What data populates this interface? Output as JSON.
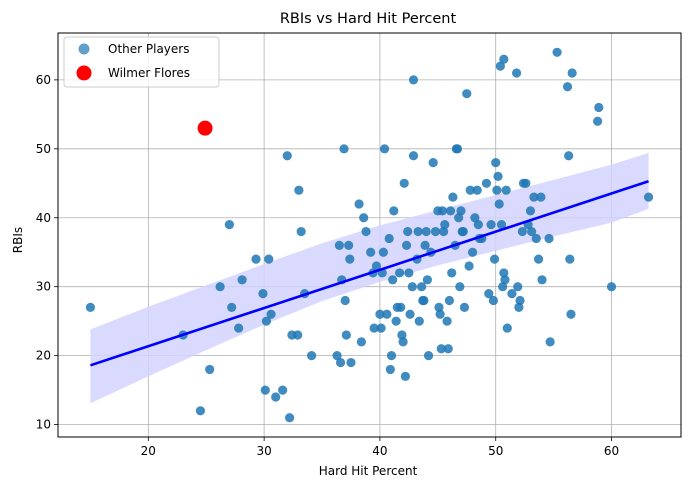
{
  "chart_data": {
    "type": "scatter",
    "title": "RBIs vs Hard Hit Percent",
    "xlabel": "Hard Hit Percent",
    "ylabel": "RBIs",
    "xlim": [
      12.2,
      66.0
    ],
    "ylim": [
      8.2,
      66.8
    ],
    "xticks": [
      20,
      30,
      40,
      50,
      60
    ],
    "yticks": [
      10,
      20,
      30,
      40,
      50,
      60
    ],
    "grid": true,
    "legend_position": "top-left",
    "series": [
      {
        "name": "Other Players",
        "color": "#1f77b4",
        "points": [
          [
            15.0,
            27
          ],
          [
            23.0,
            23
          ],
          [
            24.5,
            12
          ],
          [
            25.3,
            18
          ],
          [
            26.2,
            30
          ],
          [
            27.0,
            39
          ],
          [
            27.2,
            27
          ],
          [
            27.8,
            24
          ],
          [
            28.1,
            31
          ],
          [
            29.3,
            34
          ],
          [
            29.9,
            29
          ],
          [
            30.1,
            15
          ],
          [
            30.2,
            25
          ],
          [
            30.4,
            34
          ],
          [
            30.6,
            26
          ],
          [
            31.0,
            14
          ],
          [
            31.6,
            15
          ],
          [
            32.0,
            49
          ],
          [
            32.2,
            11
          ],
          [
            32.4,
            23
          ],
          [
            32.9,
            23
          ],
          [
            33.0,
            44
          ],
          [
            33.2,
            38
          ],
          [
            33.5,
            29
          ],
          [
            34.1,
            20
          ],
          [
            36.3,
            20
          ],
          [
            36.5,
            36
          ],
          [
            36.6,
            19
          ],
          [
            36.7,
            31
          ],
          [
            36.9,
            50
          ],
          [
            37.0,
            28
          ],
          [
            37.1,
            23
          ],
          [
            37.3,
            36
          ],
          [
            37.4,
            34
          ],
          [
            37.5,
            19
          ],
          [
            38.2,
            42
          ],
          [
            38.4,
            22
          ],
          [
            38.6,
            40
          ],
          [
            38.8,
            38
          ],
          [
            39.2,
            35
          ],
          [
            39.4,
            32
          ],
          [
            39.5,
            24
          ],
          [
            39.7,
            33
          ],
          [
            40.0,
            26
          ],
          [
            40.1,
            24
          ],
          [
            40.2,
            32
          ],
          [
            40.3,
            35
          ],
          [
            40.4,
            50
          ],
          [
            40.6,
            26
          ],
          [
            40.8,
            37
          ],
          [
            40.9,
            18
          ],
          [
            41.0,
            20
          ],
          [
            41.1,
            31
          ],
          [
            41.2,
            41
          ],
          [
            41.4,
            25
          ],
          [
            41.5,
            27
          ],
          [
            41.7,
            32
          ],
          [
            41.8,
            27
          ],
          [
            41.9,
            23
          ],
          [
            42.0,
            22
          ],
          [
            42.1,
            45
          ],
          [
            42.2,
            17
          ],
          [
            42.3,
            36
          ],
          [
            42.4,
            38
          ],
          [
            42.5,
            32
          ],
          [
            42.6,
            26
          ],
          [
            42.8,
            30
          ],
          [
            42.9,
            60
          ],
          [
            42.9,
            49
          ],
          [
            43.2,
            34
          ],
          [
            43.3,
            38
          ],
          [
            43.4,
            25
          ],
          [
            43.6,
            30
          ],
          [
            43.7,
            28
          ],
          [
            43.8,
            28
          ],
          [
            43.9,
            36
          ],
          [
            44.0,
            38
          ],
          [
            44.1,
            31
          ],
          [
            44.2,
            20
          ],
          [
            44.4,
            35
          ],
          [
            44.6,
            48
          ],
          [
            44.8,
            38
          ],
          [
            45.0,
            41
          ],
          [
            45.1,
            27
          ],
          [
            45.2,
            26
          ],
          [
            45.3,
            21
          ],
          [
            45.4,
            41
          ],
          [
            45.5,
            38
          ],
          [
            45.6,
            39
          ],
          [
            45.8,
            25
          ],
          [
            45.9,
            21
          ],
          [
            46.0,
            28
          ],
          [
            46.1,
            41
          ],
          [
            46.2,
            32
          ],
          [
            46.3,
            43
          ],
          [
            46.5,
            36
          ],
          [
            46.6,
            50
          ],
          [
            46.7,
            50
          ],
          [
            46.8,
            40
          ],
          [
            46.9,
            30
          ],
          [
            47.0,
            41
          ],
          [
            47.1,
            38
          ],
          [
            47.2,
            38
          ],
          [
            47.3,
            27
          ],
          [
            47.5,
            58
          ],
          [
            47.7,
            33
          ],
          [
            47.8,
            44
          ],
          [
            48.0,
            35
          ],
          [
            48.2,
            40
          ],
          [
            48.4,
            44
          ],
          [
            48.5,
            39
          ],
          [
            48.6,
            37
          ],
          [
            48.8,
            37
          ],
          [
            49.2,
            45
          ],
          [
            49.4,
            29
          ],
          [
            49.6,
            39
          ],
          [
            49.8,
            28
          ],
          [
            49.9,
            34
          ],
          [
            50.0,
            48
          ],
          [
            50.1,
            44
          ],
          [
            50.2,
            46
          ],
          [
            50.3,
            42
          ],
          [
            50.4,
            62
          ],
          [
            50.5,
            39
          ],
          [
            50.6,
            30
          ],
          [
            50.7,
            63
          ],
          [
            50.7,
            32
          ],
          [
            50.8,
            31
          ],
          [
            50.9,
            44
          ],
          [
            51.0,
            24
          ],
          [
            51.4,
            29
          ],
          [
            51.8,
            61
          ],
          [
            51.9,
            30
          ],
          [
            52.0,
            27
          ],
          [
            52.1,
            28
          ],
          [
            52.3,
            38
          ],
          [
            52.4,
            45
          ],
          [
            52.6,
            45
          ],
          [
            52.8,
            39
          ],
          [
            53.0,
            41
          ],
          [
            53.1,
            38
          ],
          [
            53.3,
            43
          ],
          [
            53.5,
            37
          ],
          [
            53.7,
            34
          ],
          [
            53.9,
            43
          ],
          [
            54.0,
            31
          ],
          [
            54.6,
            37
          ],
          [
            54.7,
            22
          ],
          [
            55.3,
            64
          ],
          [
            56.2,
            59
          ],
          [
            56.3,
            49
          ],
          [
            56.4,
            34
          ],
          [
            56.5,
            26
          ],
          [
            56.6,
            61
          ],
          [
            58.8,
            54
          ],
          [
            58.9,
            56
          ],
          [
            60.0,
            30
          ],
          [
            63.2,
            43
          ]
        ]
      },
      {
        "name": "Wilmer Flores",
        "color": "#ff0000",
        "points": [
          [
            24.9,
            53
          ]
        ]
      }
    ],
    "regression": {
      "color": "#0000ff",
      "band_color": "#d4d4ff",
      "line": [
        [
          15.0,
          18.6
        ],
        [
          63.2,
          45.3
        ]
      ],
      "band_upper": [
        [
          15.0,
          23.8
        ],
        [
          20,
          27.1
        ],
        [
          25,
          30.2
        ],
        [
          30,
          33.3
        ],
        [
          35,
          36.3
        ],
        [
          40,
          38.9
        ],
        [
          45,
          41.1
        ],
        [
          50,
          43.3
        ],
        [
          55,
          45.5
        ],
        [
          60,
          47.7
        ],
        [
          63.2,
          49.4
        ]
      ],
      "band_lower": [
        [
          15.0,
          13.1
        ],
        [
          20,
          17.0
        ],
        [
          25,
          20.8
        ],
        [
          30,
          24.5
        ],
        [
          35,
          27.9
        ],
        [
          40,
          30.7
        ],
        [
          45,
          33.1
        ],
        [
          50,
          35.2
        ],
        [
          55,
          37.3
        ],
        [
          60,
          39.3
        ],
        [
          63.2,
          41.3
        ]
      ]
    }
  }
}
